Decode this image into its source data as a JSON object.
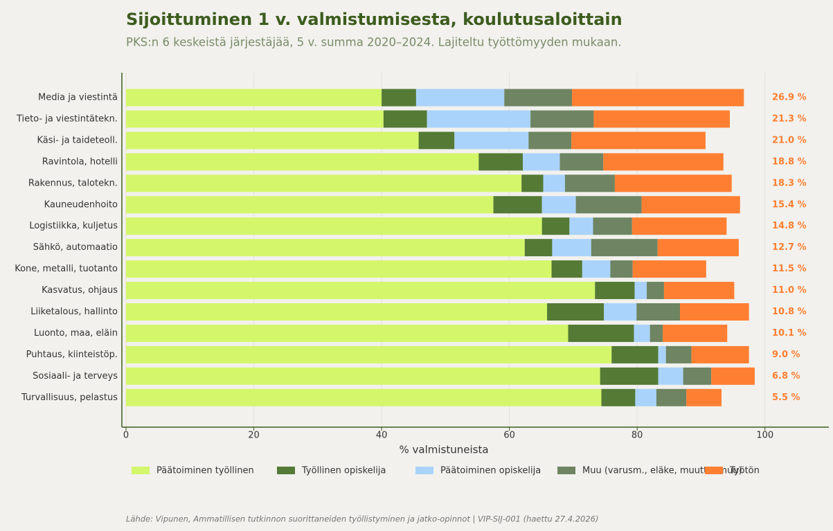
{
  "chart_data": {
    "type": "stacked_barh",
    "title": "Sijoittuminen 1 v. valmistumisesta, koulutusaloittain",
    "subtitle": "PKS:n 6 keskeistä järjestäjää, 5 v. summa 2020–2024. Lajiteltu työttömyyden mukaan.",
    "xlabel": "% valmistuneista",
    "source": "Lähde: Vipunen, Ammatillisen tutkinnon suorittaneiden työllistyminen ja jatko-opinnot | VIP-SIJ-001 (haettu 27.4.2026)",
    "categories": [
      "Media ja viestintä",
      "Tieto- ja viestintätekn.",
      "Käsi- ja taideteoll.",
      "Ravintola, hotelli",
      "Rakennus, talotekn.",
      "Kauneudenhoito",
      "Logistiikka, kuljetus",
      "Sähkö, automaatio",
      "Kone, metalli, tuotanto",
      "Kasvatus, ohjaus",
      "Liiketalous, hallinto",
      "Luonto, maa, eläin",
      "Puhtaus, kiinteistöp.",
      "Sosiaali- ja terveys",
      "Turvallisuus, pelastus"
    ],
    "series": [
      {
        "name": "Päätoiminen työllinen",
        "color": "#d4f66a",
        "values": [
          40.0,
          40.3,
          45.8,
          55.2,
          61.9,
          57.5,
          65.1,
          62.4,
          66.6,
          73.4,
          65.9,
          69.2,
          76.0,
          74.2,
          74.4
        ]
      },
      {
        "name": "Työllinen opiskelija",
        "color": "#547a35",
        "values": [
          5.4,
          6.8,
          5.6,
          6.9,
          3.4,
          7.6,
          4.3,
          4.3,
          4.8,
          6.2,
          8.9,
          10.3,
          7.3,
          9.1,
          5.3
        ]
      },
      {
        "name": "Päätoiminen opiskelija",
        "color": "#aad3fb",
        "values": [
          13.8,
          16.2,
          11.6,
          5.8,
          3.4,
          5.3,
          3.7,
          6.1,
          4.4,
          1.9,
          5.1,
          2.5,
          1.2,
          3.9,
          3.3
        ]
      },
      {
        "name": "Muu (varusm., eläke, muutto, muu)",
        "color": "#6e8462",
        "values": [
          10.6,
          9.9,
          6.7,
          6.8,
          7.8,
          10.3,
          6.1,
          10.4,
          3.5,
          2.7,
          6.8,
          2.0,
          4.0,
          4.4,
          4.7
        ]
      },
      {
        "name": "Työtön",
        "color": "#ff7f32",
        "values": [
          26.9,
          21.3,
          21.0,
          18.8,
          18.3,
          15.4,
          14.8,
          12.7,
          11.5,
          11.0,
          10.8,
          10.1,
          9.0,
          6.8,
          5.5
        ],
        "value_labels": [
          "26.9 %",
          "21.3 %",
          "21.0 %",
          "18.8 %",
          "18.3 %",
          "15.4 %",
          "14.8 %",
          "12.7 %",
          "11.5 %",
          "11.0 %",
          "10.8 %",
          "10.1 %",
          "9.0 %",
          "6.8 %",
          "5.5 %"
        ]
      }
    ],
    "xlim": [
      0,
      110
    ],
    "xticks": [
      0,
      20,
      40,
      60,
      80,
      100
    ],
    "grid": true,
    "legend": "bottom"
  }
}
